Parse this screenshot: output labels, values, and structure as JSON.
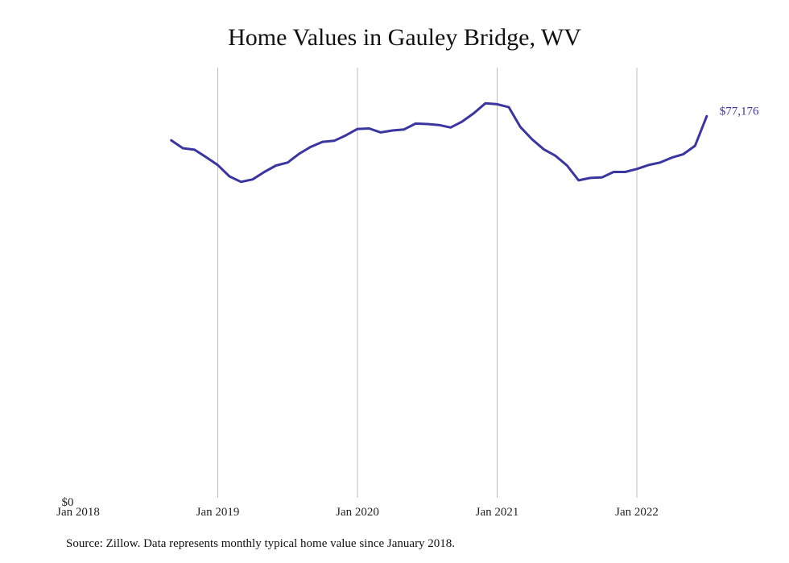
{
  "chart_data": {
    "type": "line",
    "title": "Home Values in Gauley Bridge, WV",
    "x_tick_labels": [
      "Jan 2018",
      "Jan 2019",
      "Jan 2020",
      "Jan 2021",
      "Jan 2022"
    ],
    "y_tick_labels": [
      "$0"
    ],
    "ylim": [
      0,
      87000
    ],
    "grid": "vertical",
    "line_color": "#3b35a0",
    "series": [
      {
        "dates": [
          "2018-09",
          "2018-10",
          "2018-11",
          "2018-12",
          "2019-01",
          "2019-02",
          "2019-03",
          "2019-04",
          "2019-05",
          "2019-06",
          "2019-07",
          "2019-08",
          "2019-09",
          "2019-10",
          "2019-11",
          "2019-12",
          "2020-01",
          "2020-02",
          "2020-03",
          "2020-04",
          "2020-05",
          "2020-06",
          "2020-07",
          "2020-08",
          "2020-09",
          "2020-10",
          "2020-11",
          "2020-12",
          "2021-01",
          "2021-02",
          "2021-03",
          "2021-04",
          "2021-05",
          "2021-06",
          "2021-07",
          "2021-08",
          "2021-09",
          "2021-10",
          "2021-11",
          "2021-12",
          "2022-01",
          "2022-02",
          "2022-03",
          "2022-04",
          "2022-05",
          "2022-06",
          "2022-07"
        ],
        "values": [
          72300,
          70700,
          70400,
          68900,
          67300,
          65000,
          63900,
          64400,
          65900,
          67200,
          67800,
          69600,
          71000,
          72000,
          72200,
          73300,
          74600,
          74700,
          73900,
          74300,
          74500,
          75700,
          75600,
          75400,
          74900,
          76100,
          77800,
          79800,
          79600,
          79000,
          75000,
          72500,
          70500,
          69200,
          67200,
          64200,
          64700,
          64800,
          65900,
          65900,
          66500,
          67300,
          67800,
          68800,
          69500,
          71200,
          77176
        ]
      }
    ],
    "end_label": "$77,176"
  },
  "source": "Source: Zillow. Data represents monthly typical home value since January 2018."
}
